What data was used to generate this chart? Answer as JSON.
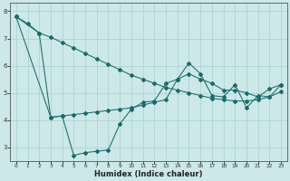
{
  "xlabel": "Humidex (Indice chaleur)",
  "bg_color": "#cce8e8",
  "line_color": "#1a6b6b",
  "grid_color": "#aed4d4",
  "xlim": [
    -0.5,
    23.5
  ],
  "ylim": [
    2.5,
    8.3
  ],
  "yticks": [
    3,
    4,
    5,
    6,
    7,
    8
  ],
  "xticks": [
    0,
    1,
    2,
    3,
    4,
    5,
    6,
    7,
    8,
    9,
    10,
    11,
    12,
    13,
    14,
    15,
    16,
    17,
    18,
    19,
    20,
    21,
    22,
    23
  ],
  "line1_x": [
    0,
    1,
    2,
    3,
    4,
    5,
    6,
    7,
    8,
    9,
    10,
    11,
    12,
    13,
    14,
    15,
    16,
    17,
    18,
    19,
    20,
    21,
    22,
    23
  ],
  "line1_y": [
    7.8,
    7.55,
    7.2,
    7.05,
    6.85,
    6.65,
    6.45,
    6.25,
    6.05,
    5.85,
    5.65,
    5.5,
    5.35,
    5.2,
    5.1,
    5.0,
    4.9,
    4.8,
    4.75,
    4.7,
    4.7,
    4.75,
    4.85,
    5.05
  ],
  "line2_x": [
    0,
    2,
    3,
    4,
    5,
    6,
    7,
    8,
    9,
    10,
    11,
    12,
    13,
    14,
    15,
    16,
    17,
    18,
    19,
    20,
    21,
    22,
    23
  ],
  "line2_y": [
    7.8,
    7.2,
    4.1,
    4.15,
    2.7,
    2.8,
    2.85,
    2.9,
    3.85,
    4.4,
    4.65,
    4.7,
    5.35,
    5.5,
    6.1,
    5.7,
    4.9,
    4.85,
    5.3,
    4.45,
    4.9,
    4.85,
    5.3
  ],
  "line3_x": [
    0,
    3,
    4,
    5,
    6,
    7,
    8,
    9,
    10,
    11,
    12,
    13,
    14,
    15,
    16,
    17,
    18,
    19,
    20,
    21,
    22,
    23
  ],
  "line3_y": [
    7.8,
    4.1,
    4.15,
    4.2,
    4.25,
    4.3,
    4.35,
    4.4,
    4.45,
    4.55,
    4.65,
    4.75,
    5.5,
    5.7,
    5.5,
    5.35,
    5.1,
    5.1,
    5.0,
    4.85,
    5.15,
    5.3
  ]
}
